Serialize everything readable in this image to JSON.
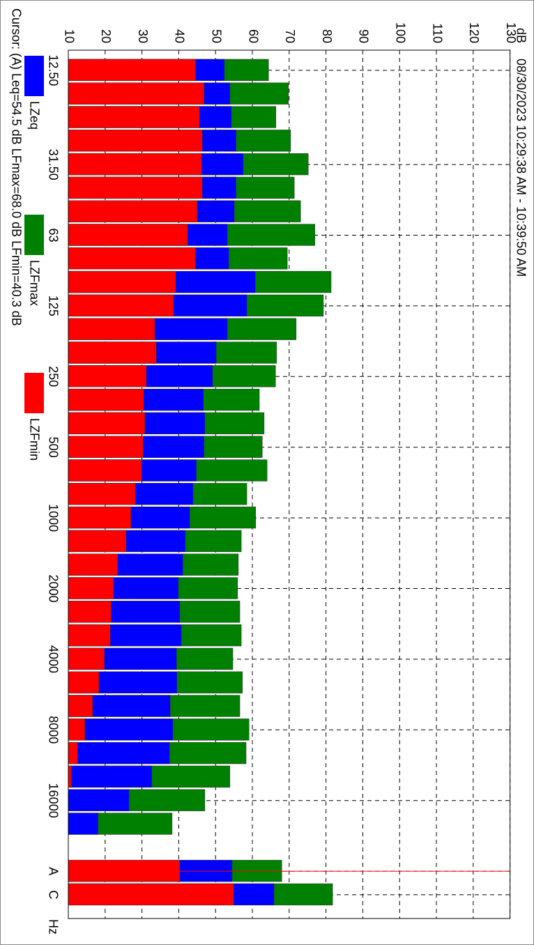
{
  "chart_data": {
    "type": "bar",
    "title": "08/30/2023 10:29:38 AM - 10:39:50 AM",
    "annotation": "Cursor: (A) Leq=54.5 dB  LFmax=68.0 dB  LFmin=40.3 dB",
    "x_label": "Hz",
    "y_label": "dB",
    "categories": [
      "12.50",
      null,
      null,
      null,
      "31.50",
      null,
      null,
      "63",
      null,
      null,
      "125",
      null,
      null,
      "250",
      null,
      null,
      "500",
      null,
      null,
      "1000",
      null,
      null,
      "2000",
      null,
      null,
      "4000",
      null,
      null,
      "8000",
      null,
      null,
      "16000",
      null,
      "A",
      "C"
    ],
    "series": [
      {
        "name": "LZeq",
        "color": "#0000ff",
        "values": [
          52.4,
          53.9,
          54.3,
          55.6,
          57.5,
          55.6,
          55.1,
          53.2,
          53.6,
          60.8,
          58.5,
          53.2,
          50.2,
          49.2,
          46.7,
          47.1,
          46.9,
          44.8,
          43.9,
          43.0,
          41.8,
          41.1,
          39.9,
          40.3,
          40.7,
          39.4,
          39.5,
          37.7,
          38.4,
          37.5,
          32.7,
          26.5,
          18.1,
          54.5,
          65.9
        ]
      },
      {
        "name": "LZFmax",
        "color": "#008000",
        "values": [
          64.4,
          69.8,
          66.4,
          70.4,
          75.2,
          71.4,
          73.1,
          77.0,
          69.5,
          81.4,
          79.3,
          71.9,
          66.6,
          66.3,
          61.9,
          63.2,
          62.7,
          64.0,
          58.5,
          60.9,
          57.0,
          56.2,
          56.0,
          56.6,
          57.0,
          54.7,
          57.3,
          56.6,
          59.1,
          58.3,
          53.9,
          47.1,
          38.2,
          68.0,
          81.8
        ]
      },
      {
        "name": "LZFmin",
        "color": "#ff0000",
        "values": [
          44.5,
          46.9,
          45.6,
          46.4,
          46.2,
          46.4,
          45.0,
          42.4,
          44.5,
          39.2,
          38.6,
          33.5,
          33.9,
          31.2,
          30.5,
          30.8,
          30.3,
          29.9,
          28.2,
          27.0,
          25.7,
          23.4,
          22.3,
          21.6,
          21.4,
          19.8,
          18.3,
          16.6,
          14.5,
          12.5,
          10.8,
          10,
          10,
          40.3,
          54.9
        ]
      }
    ],
    "ylim": [
      10,
      130
    ],
    "yticks": [
      10,
      20,
      30,
      40,
      50,
      60,
      70,
      80,
      90,
      100,
      110,
      120,
      130
    ],
    "grid": true
  }
}
